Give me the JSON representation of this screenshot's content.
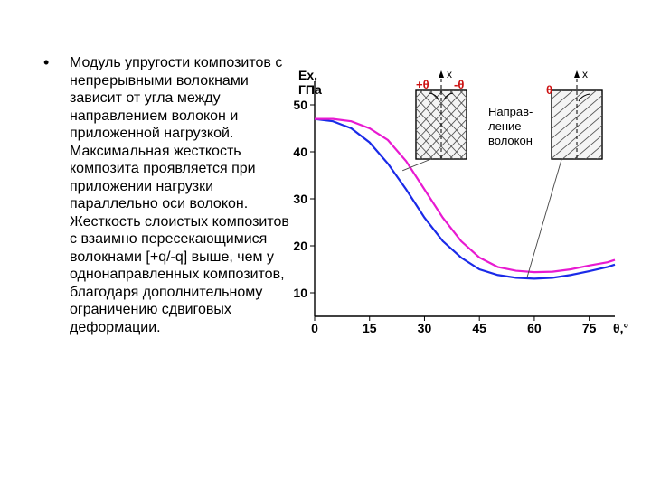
{
  "bullet_glyph": "•",
  "paragraph": "Модуль упругости композитов с непрерывными волокнами зависит от угла между направлением волокон и приложенной нагрузкой. Максимальная жесткость композита проявляется при приложении нагрузки параллельно оси волокон. Жесткость слоистых композитов с взаимно пересекающимися волокнами [+q/-q] выше, чем у однонаправленных композитов, благодаря дополнительному ограничению сдвиговых деформации.",
  "chart": {
    "type": "line",
    "y_label": "Ex, ГПа",
    "x_label": "θ,°",
    "x_ticks": [
      0,
      15,
      30,
      45,
      60,
      75
    ],
    "y_ticks": [
      10,
      20,
      30,
      40,
      50
    ],
    "xlim": [
      0,
      82
    ],
    "ylim": [
      5,
      55
    ],
    "background_color": "#ffffff",
    "axis_color": "#000000",
    "axis_width": 1.4,
    "axis_fontsize": 14,
    "label_fontsize": 14,
    "curves": {
      "magenta": {
        "color": "#e81ad1",
        "width": 2.2,
        "points": [
          [
            0,
            47
          ],
          [
            5,
            47
          ],
          [
            10,
            46.5
          ],
          [
            15,
            45
          ],
          [
            20,
            42.5
          ],
          [
            25,
            38
          ],
          [
            30,
            32
          ],
          [
            35,
            26
          ],
          [
            40,
            21
          ],
          [
            45,
            17.5
          ],
          [
            50,
            15.5
          ],
          [
            55,
            14.7
          ],
          [
            60,
            14.4
          ],
          [
            65,
            14.5
          ],
          [
            70,
            15
          ],
          [
            75,
            15.8
          ],
          [
            80,
            16.5
          ],
          [
            82,
            17
          ]
        ]
      },
      "blue": {
        "color": "#1a2ae8",
        "width": 2.2,
        "points": [
          [
            0,
            47
          ],
          [
            5,
            46.5
          ],
          [
            10,
            45
          ],
          [
            15,
            42
          ],
          [
            20,
            37.5
          ],
          [
            25,
            32
          ],
          [
            30,
            26
          ],
          [
            35,
            21
          ],
          [
            40,
            17.5
          ],
          [
            45,
            15
          ],
          [
            50,
            13.8
          ],
          [
            55,
            13.2
          ],
          [
            60,
            13
          ],
          [
            65,
            13.2
          ],
          [
            70,
            13.8
          ],
          [
            75,
            14.6
          ],
          [
            80,
            15.5
          ],
          [
            82,
            16
          ]
        ]
      }
    },
    "diagram_labels": {
      "plus_theta": "+θ",
      "minus_theta": "-θ",
      "theta": "θ",
      "x_arrow": "x",
      "fiber_direction": "Направ-\nление\nволокон"
    },
    "diagram_colors": {
      "outline": "#000000",
      "fill": "#f4f4f4",
      "hatch": "#555555",
      "dash": "#000000",
      "red_text": "#cc1010"
    },
    "callout_line_color": "#444444",
    "callout_line_width": 0.9
  }
}
